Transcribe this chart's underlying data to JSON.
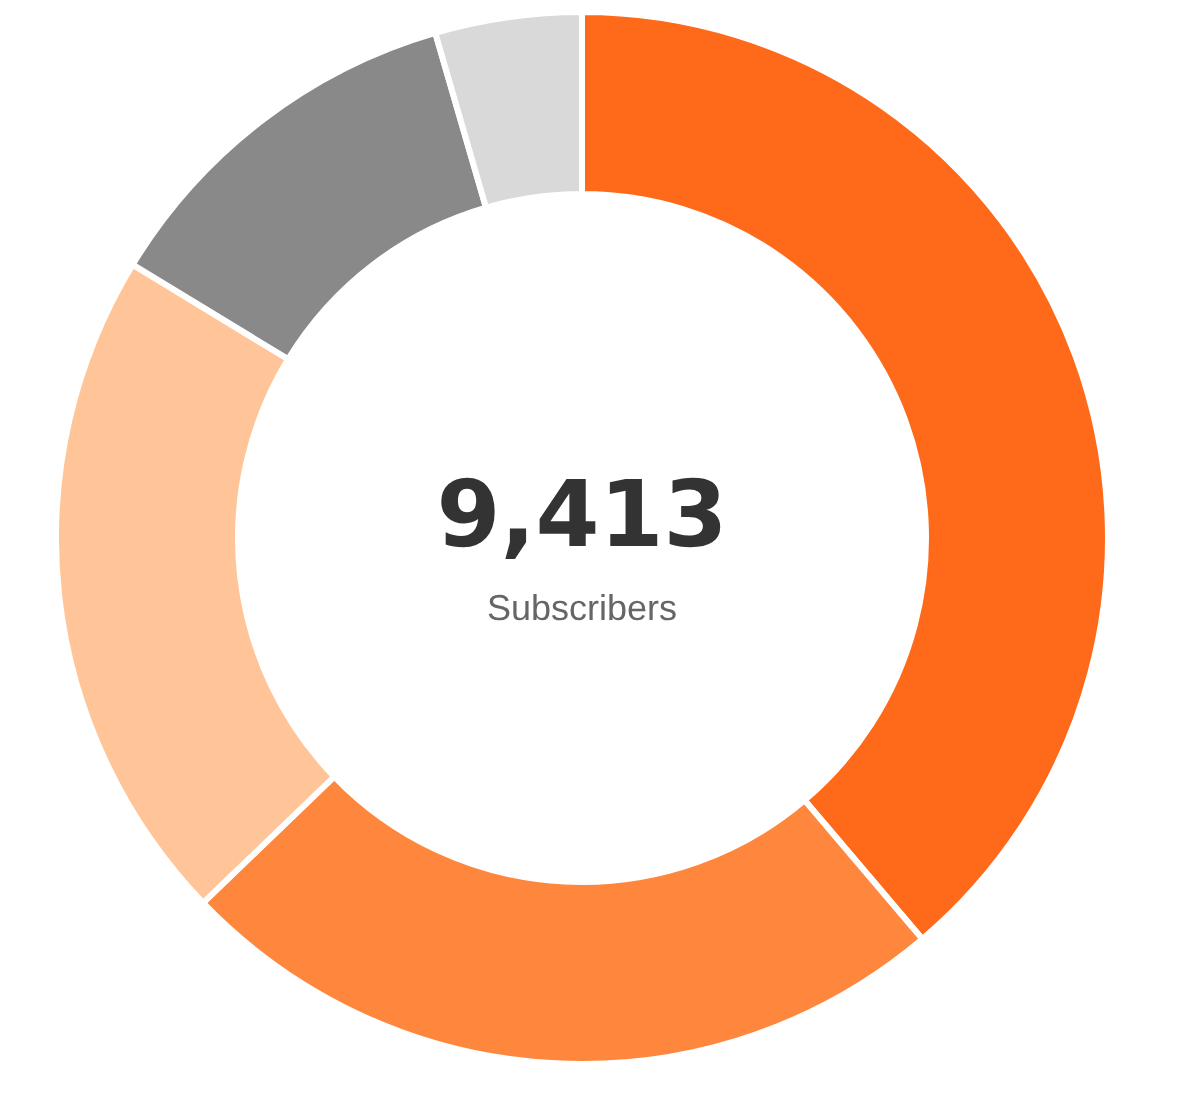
{
  "chart_data": {
    "type": "donut",
    "title": "9,413",
    "subtitle": "Subscribers",
    "categories": [
      null,
      null,
      null,
      null,
      null
    ],
    "values": [
      38.8,
      24.0,
      20.9,
      11.8,
      4.5
    ],
    "colors": [
      "#ff6a1a",
      "#ff873d",
      "#ffc599",
      "#898989",
      "#d9d9d9"
    ]
  }
}
